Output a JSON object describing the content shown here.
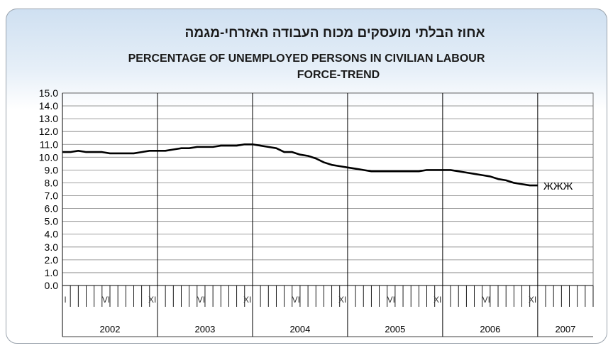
{
  "title_hebrew": "אחוז הבלתי מועסקים מכוח העבודה האזרחי-מגמה",
  "title_line1": "PERCENTAGE OF UNEMPLOYED PERSONS IN  CIVILIAN LABOUR",
  "title_line2": "FORCE-TREND",
  "trailing_marker": "ЖЖЖ",
  "colors": {
    "line": "#000000",
    "grid": "#808080",
    "border": "#9aa3ad",
    "gradient_top": "#cfe0f1"
  },
  "chart_data": {
    "type": "line",
    "title": "PERCENTAGE OF UNEMPLOYED PERSONS IN CIVILIAN LABOUR FORCE-TREND",
    "ylim": [
      0,
      15
    ],
    "yticks": [
      "0.0",
      "1.0",
      "2.0",
      "3.0",
      "4.0",
      "5.0",
      "6.0",
      "7.0",
      "8.0",
      "9.0",
      "10.0",
      "11.0",
      "12.0",
      "13.0",
      "14.0",
      "15.0"
    ],
    "grid": true,
    "years": [
      "2002",
      "2003",
      "2004",
      "2005",
      "2006",
      "2007"
    ],
    "month_labels": [
      "I",
      "VI",
      "XII"
    ],
    "series": [
      {
        "x": [
          "2002-01",
          "2002-02",
          "2002-03",
          "2002-04",
          "2002-05",
          "2002-06",
          "2002-07",
          "2002-08",
          "2002-09",
          "2002-10",
          "2002-11",
          "2002-12",
          "2003-01",
          "2003-02",
          "2003-03",
          "2003-04",
          "2003-05",
          "2003-06",
          "2003-07",
          "2003-08",
          "2003-09",
          "2003-10",
          "2003-11",
          "2003-12",
          "2004-01",
          "2004-02",
          "2004-03",
          "2004-04",
          "2004-05",
          "2004-06",
          "2004-07",
          "2004-08",
          "2004-09",
          "2004-10",
          "2004-11",
          "2004-12",
          "2005-01",
          "2005-02",
          "2005-03",
          "2005-04",
          "2005-05",
          "2005-06",
          "2005-07",
          "2005-08",
          "2005-09",
          "2005-10",
          "2005-11",
          "2005-12",
          "2006-01",
          "2006-02",
          "2006-03",
          "2006-04",
          "2006-05",
          "2006-06",
          "2006-07",
          "2006-08",
          "2006-09",
          "2006-10",
          "2006-11",
          "2006-12",
          "2007-01"
        ],
        "y": [
          10.4,
          10.4,
          10.5,
          10.4,
          10.4,
          10.4,
          10.3,
          10.3,
          10.3,
          10.3,
          10.4,
          10.5,
          10.5,
          10.5,
          10.6,
          10.7,
          10.7,
          10.8,
          10.8,
          10.8,
          10.9,
          10.9,
          10.9,
          11.0,
          11.0,
          10.9,
          10.8,
          10.7,
          10.4,
          10.4,
          10.2,
          10.1,
          9.9,
          9.6,
          9.4,
          9.3,
          9.2,
          9.1,
          9.0,
          8.9,
          8.9,
          8.9,
          8.9,
          8.9,
          8.9,
          8.9,
          9.0,
          9.0,
          9.0,
          9.0,
          8.9,
          8.8,
          8.7,
          8.6,
          8.5,
          8.3,
          8.2,
          8.0,
          7.9,
          7.8,
          7.8
        ]
      }
    ]
  }
}
